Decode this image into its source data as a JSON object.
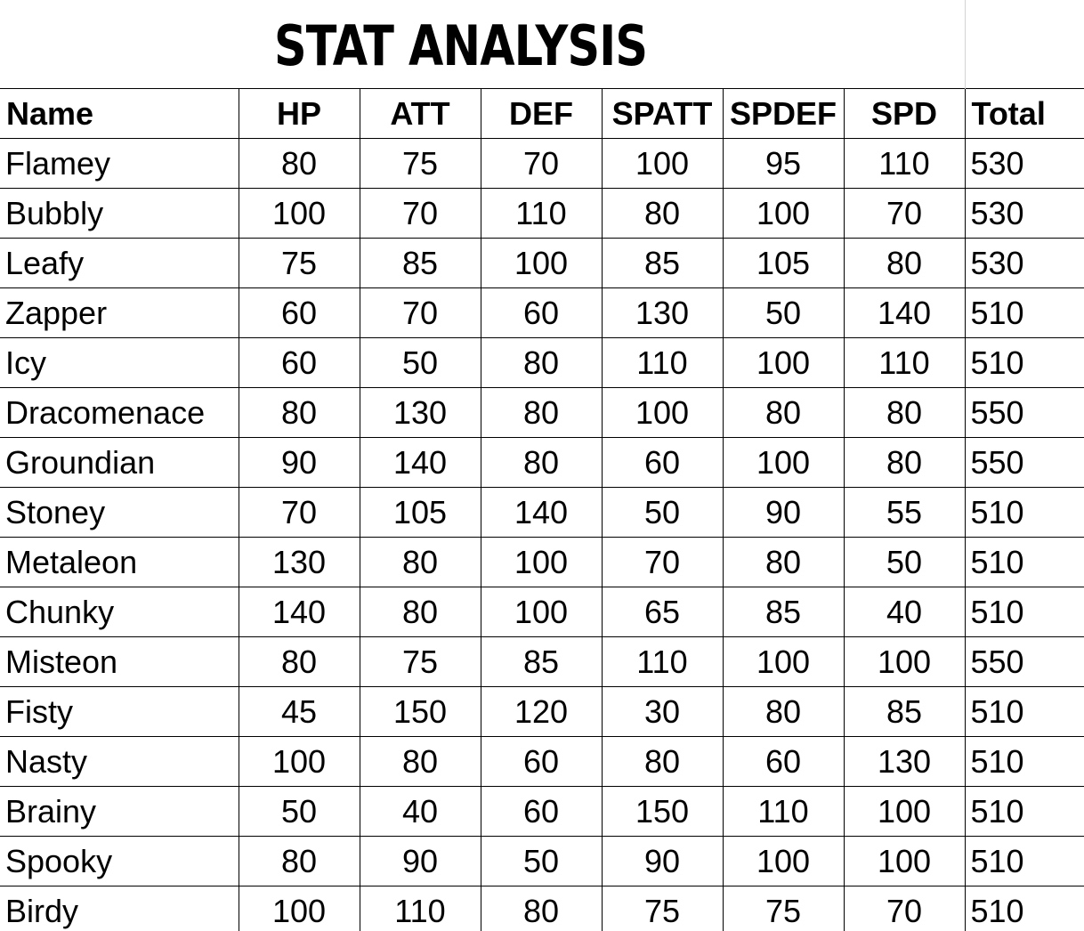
{
  "title": "STAT ANALYSIS",
  "headers": [
    "Name",
    "HP",
    "ATT",
    "DEF",
    "SPATT",
    "SPDEF",
    "SPD",
    "Total"
  ],
  "rows": [
    [
      "Flamey",
      "80",
      "75",
      "70",
      "100",
      "95",
      "110",
      "530"
    ],
    [
      "Bubbly",
      "100",
      "70",
      "110",
      "80",
      "100",
      "70",
      "530"
    ],
    [
      "Leafy",
      "75",
      "85",
      "100",
      "85",
      "105",
      "80",
      "530"
    ],
    [
      "Zapper",
      "60",
      "70",
      "60",
      "130",
      "50",
      "140",
      "510"
    ],
    [
      "Icy",
      "60",
      "50",
      "80",
      "110",
      "100",
      "110",
      "510"
    ],
    [
      "Dracomenace",
      "80",
      "130",
      "80",
      "100",
      "80",
      "80",
      "550"
    ],
    [
      "Groundian",
      "90",
      "140",
      "80",
      "60",
      "100",
      "80",
      "550"
    ],
    [
      "Stoney",
      "70",
      "105",
      "140",
      "50",
      "90",
      "55",
      "510"
    ],
    [
      "Metaleon",
      "130",
      "80",
      "100",
      "70",
      "80",
      "50",
      "510"
    ],
    [
      "Chunky",
      "140",
      "80",
      "100",
      "65",
      "85",
      "40",
      "510"
    ],
    [
      "Misteon",
      "80",
      "75",
      "85",
      "110",
      "100",
      "100",
      "550"
    ],
    [
      "Fisty",
      "45",
      "150",
      "120",
      "30",
      "80",
      "85",
      "510"
    ],
    [
      "Nasty",
      "100",
      "80",
      "60",
      "80",
      "60",
      "130",
      "510"
    ],
    [
      "Brainy",
      "50",
      "40",
      "60",
      "150",
      "110",
      "100",
      "510"
    ],
    [
      "Spooky",
      "80",
      "90",
      "50",
      "90",
      "100",
      "100",
      "510"
    ],
    [
      "Birdy",
      "100",
      "110",
      "80",
      "75",
      "75",
      "70",
      "510"
    ]
  ]
}
